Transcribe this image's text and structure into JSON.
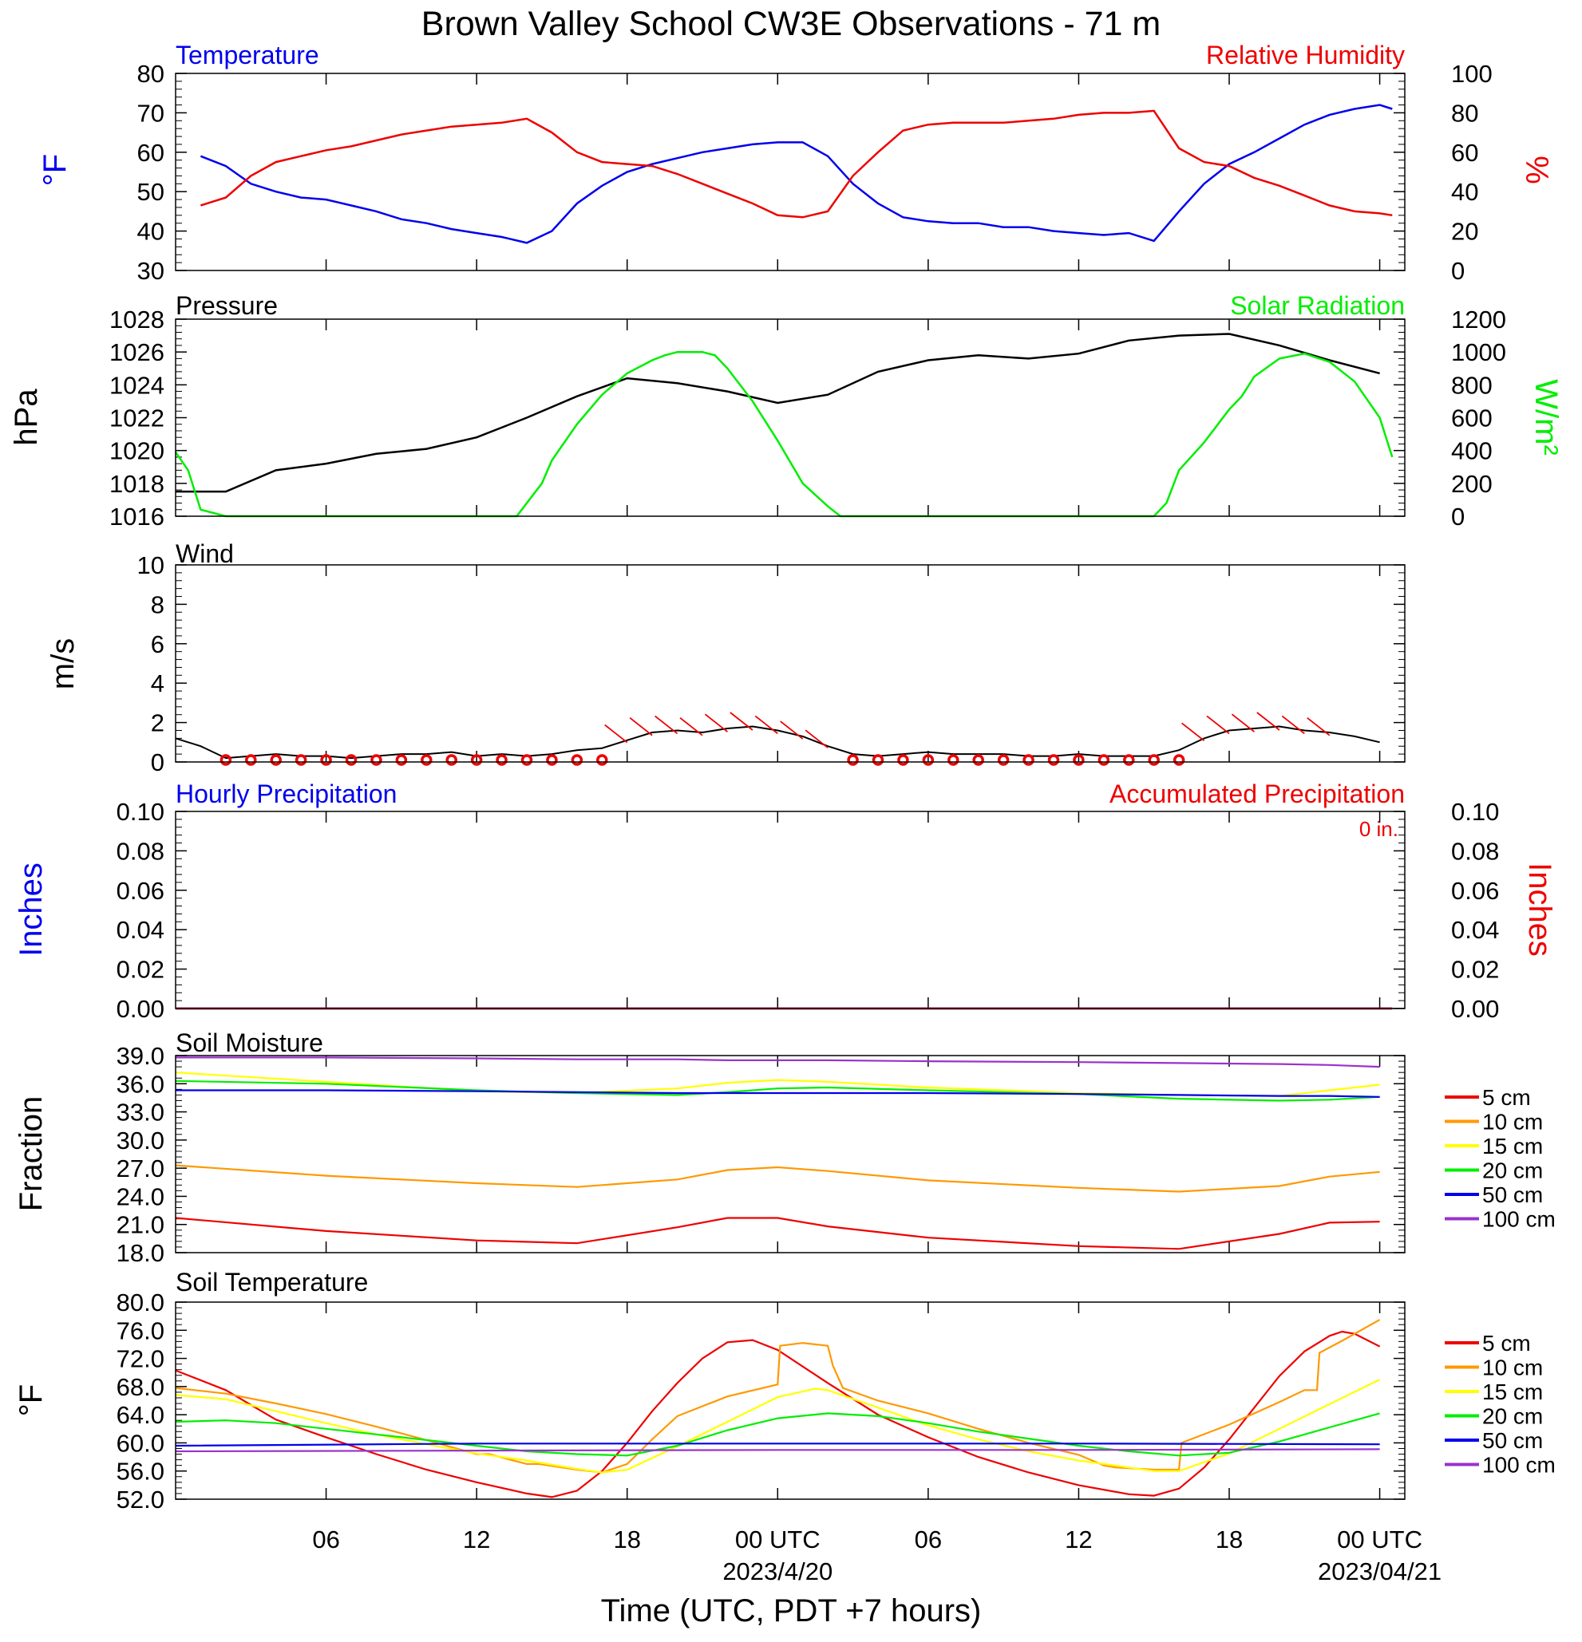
{
  "title": "Brown Valley School CW3E Observations - 71 m",
  "time_axis": {
    "tick_labels": [
      "06",
      "12",
      "18",
      "00 UTC",
      "06",
      "12",
      "18",
      "00 UTC"
    ],
    "dates": [
      "2023/4/20",
      "2023/04/21"
    ],
    "xlabel": "Time (UTC, PDT +7 hours)"
  },
  "panels": {
    "temp_rh": {
      "left_title": "Temperature",
      "right_title": "Relative Humidity",
      "left_ylabel": "°F",
      "right_ylabel": "%",
      "left_ticks": [
        "30",
        "40",
        "50",
        "60",
        "70",
        "80"
      ],
      "right_ticks": [
        "0",
        "20",
        "40",
        "60",
        "80",
        "100"
      ]
    },
    "pressure_solar": {
      "left_title": "Pressure",
      "right_title": "Solar Radiation",
      "left_ylabel": "hPa",
      "right_ylabel": "W/m²",
      "left_ticks": [
        "1016",
        "1018",
        "1020",
        "1022",
        "1024",
        "1026",
        "1028"
      ],
      "right_ticks": [
        "0",
        "200",
        "400",
        "600",
        "800",
        "1000",
        "1200"
      ]
    },
    "wind": {
      "left_title": "Wind",
      "left_ylabel": "m/s",
      "left_ticks": [
        "0",
        "2",
        "4",
        "6",
        "8",
        "10"
      ]
    },
    "precip": {
      "left_title": "Hourly Precipitation",
      "right_title": "Accumulated Precipitation",
      "total_label": "0 in.",
      "left_ylabel": "Inches",
      "right_ylabel": "Inches",
      "left_ticks": [
        "0.00",
        "0.02",
        "0.04",
        "0.06",
        "0.08",
        "0.10"
      ],
      "right_ticks": [
        "0.00",
        "0.02",
        "0.04",
        "0.06",
        "0.08",
        "0.10"
      ]
    },
    "soil_moisture": {
      "left_title": "Soil Moisture",
      "left_ylabel": "Fraction",
      "left_ticks": [
        "18.0",
        "21.0",
        "24.0",
        "27.0",
        "30.0",
        "33.0",
        "36.0",
        "39.0"
      ]
    },
    "soil_temp": {
      "left_title": "Soil Temperature",
      "left_ylabel": "°F",
      "left_ticks": [
        "52.0",
        "56.0",
        "60.0",
        "64.0",
        "68.0",
        "72.0",
        "76.0",
        "80.0"
      ]
    }
  },
  "legend_labels": [
    "5 cm",
    "10 cm",
    "15 cm",
    "20 cm",
    "50 cm",
    "100 cm"
  ],
  "colors": {
    "temperature": "#0000ee",
    "humidity": "#ee0000",
    "pressure": "#000000",
    "solar": "#00ee00",
    "wind": "#000000",
    "wind_barb": "#ee0000",
    "depths": [
      "#ee0000",
      "#ff9900",
      "#ffff00",
      "#00ee00",
      "#0000ee",
      "#9933cc"
    ]
  },
  "chart_data": [
    {
      "type": "line",
      "x_unit": "hours since 2023-04-19 00 UTC",
      "xlim": [
        0,
        49
      ],
      "series": [
        {
          "name": "Temperature",
          "unit": "°F",
          "ylim": [
            30,
            80
          ],
          "x": [
            1,
            2,
            3,
            4,
            5,
            6,
            7,
            8,
            9,
            10,
            11,
            12,
            13,
            14,
            15,
            16,
            17,
            18,
            19,
            20,
            21,
            22,
            23,
            24,
            25,
            26,
            27,
            28,
            29,
            30,
            31,
            32,
            33,
            34,
            35,
            36,
            37,
            38,
            39,
            40,
            41,
            42,
            43,
            44,
            45,
            46,
            47,
            48,
            48.5
          ],
          "y": [
            59,
            56.5,
            52,
            50,
            48.5,
            48,
            46.5,
            45,
            43,
            42,
            40.5,
            39.5,
            38.5,
            37,
            40,
            47,
            51.5,
            55,
            57,
            58.5,
            60,
            61,
            62,
            62.5,
            62.5,
            59,
            52,
            47,
            43.5,
            42.5,
            42,
            42,
            41,
            41,
            40,
            39.5,
            39,
            39.5,
            37.5,
            45,
            52,
            57,
            60,
            63.5,
            67,
            69.5,
            71,
            72,
            71
          ]
        },
        {
          "name": "Relative Humidity",
          "unit": "%",
          "ylim": [
            0,
            100
          ],
          "x": [
            1,
            2,
            3,
            4,
            5,
            6,
            7,
            8,
            9,
            10,
            11,
            12,
            13,
            14,
            15,
            16,
            17,
            18,
            19,
            20,
            21,
            22,
            23,
            24,
            25,
            26,
            27,
            28,
            29,
            30,
            31,
            32,
            33,
            34,
            35,
            36,
            37,
            38,
            39,
            40,
            41,
            42,
            43,
            44,
            45,
            46,
            47,
            48,
            48.5
          ],
          "y": [
            33,
            37,
            48,
            55,
            58,
            61,
            63,
            66,
            69,
            71,
            73,
            74,
            75,
            77,
            70,
            60,
            55,
            54,
            53,
            49,
            44,
            39,
            34,
            28,
            27,
            30,
            48,
            60,
            71,
            74,
            75,
            75,
            75,
            76,
            77,
            79,
            80,
            80,
            81,
            62,
            55,
            53,
            47,
            43,
            38,
            33,
            30,
            29,
            28
          ]
        }
      ]
    },
    {
      "type": "line",
      "x_unit": "hours since 2023-04-19 00 UTC",
      "xlim": [
        0,
        49
      ],
      "series": [
        {
          "name": "Pressure",
          "unit": "hPa",
          "ylim": [
            1016,
            1028
          ],
          "x": [
            0,
            2,
            4,
            6,
            8,
            10,
            12,
            14,
            16,
            18,
            20,
            22,
            24,
            26,
            28,
            30,
            32,
            34,
            36,
            38,
            40,
            42,
            44,
            46,
            48
          ],
          "y": [
            1017.5,
            1017.5,
            1018.8,
            1019.2,
            1019.8,
            1020.1,
            1020.8,
            1022.0,
            1023.3,
            1024.4,
            1024.1,
            1023.6,
            1022.9,
            1023.4,
            1024.8,
            1025.5,
            1025.8,
            1025.6,
            1025.9,
            1026.7,
            1027.0,
            1027.1,
            1026.4,
            1025.5,
            1024.7
          ]
        },
        {
          "name": "Solar Radiation",
          "unit": "W/m²",
          "ylim": [
            0,
            1200
          ],
          "x": [
            0,
            0.5,
            1,
            2,
            12,
            13,
            13.6,
            14,
            14.6,
            15,
            16,
            17,
            18,
            19,
            19.5,
            20,
            21,
            21.5,
            22,
            23,
            24,
            25,
            26,
            26.5,
            38,
            39,
            39.5,
            40,
            41,
            42,
            42.5,
            43,
            44,
            45,
            46,
            47,
            48,
            48.5
          ],
          "y": [
            390,
            280,
            40,
            0,
            0,
            0,
            0,
            80,
            200,
            340,
            560,
            740,
            870,
            950,
            980,
            1000,
            1000,
            980,
            900,
            700,
            460,
            200,
            60,
            0,
            0,
            0,
            80,
            280,
            450,
            650,
            730,
            850,
            960,
            990,
            940,
            820,
            600,
            360
          ]
        }
      ]
    },
    {
      "type": "line",
      "x_unit": "hours since 2023-04-19 00 UTC",
      "xlim": [
        0,
        49
      ],
      "series": [
        {
          "name": "Wind",
          "unit": "m/s",
          "ylim": [
            0,
            10
          ],
          "x": [
            0,
            1,
            2,
            3,
            4,
            5,
            6,
            7,
            8,
            9,
            10,
            11,
            12,
            13,
            14,
            15,
            16,
            17,
            18,
            19,
            20,
            21,
            22,
            23,
            24,
            25,
            26,
            27,
            28,
            29,
            30,
            31,
            32,
            33,
            34,
            35,
            36,
            37,
            38,
            39,
            40,
            41,
            42,
            43,
            44,
            45,
            46,
            47,
            48
          ],
          "y": [
            1.2,
            0.8,
            0.2,
            0.3,
            0.4,
            0.3,
            0.3,
            0.2,
            0.3,
            0.4,
            0.4,
            0.5,
            0.3,
            0.4,
            0.3,
            0.4,
            0.6,
            0.7,
            1.1,
            1.5,
            1.6,
            1.5,
            1.7,
            1.8,
            1.6,
            1.3,
            0.8,
            0.4,
            0.3,
            0.4,
            0.5,
            0.4,
            0.4,
            0.4,
            0.3,
            0.3,
            0.4,
            0.3,
            0.3,
            0.3,
            0.6,
            1.2,
            1.6,
            1.7,
            1.8,
            1.6,
            1.5,
            1.3,
            1.0
          ]
        }
      ]
    },
    {
      "type": "line",
      "x_unit": "hours since 2023-04-19 00 UTC",
      "xlim": [
        0,
        49
      ],
      "series": [
        {
          "name": "Hourly Precipitation",
          "unit": "in",
          "ylim": [
            0,
            0.1
          ],
          "x": [
            0,
            48.5
          ],
          "y": [
            0,
            0
          ]
        },
        {
          "name": "Accumulated Precipitation",
          "unit": "in",
          "ylim": [
            0,
            0.1
          ],
          "x": [
            0,
            48.5
          ],
          "y": [
            0,
            0
          ]
        }
      ]
    },
    {
      "type": "line",
      "x_unit": "hours since 2023-04-19 00 UTC",
      "ylim": [
        18,
        39
      ],
      "x": [
        0,
        6,
        12,
        16,
        20,
        22,
        24,
        26,
        30,
        36,
        40,
        44,
        46,
        48
      ],
      "series": [
        {
          "name": "5 cm",
          "y": [
            21.7,
            20.3,
            19.3,
            19.0,
            20.7,
            21.7,
            21.7,
            20.8,
            19.6,
            18.7,
            18.4,
            20.0,
            21.2,
            21.3
          ]
        },
        {
          "name": "10 cm",
          "y": [
            27.3,
            26.2,
            25.4,
            25.0,
            25.8,
            26.8,
            27.1,
            26.7,
            25.7,
            24.9,
            24.5,
            25.1,
            26.1,
            26.6
          ]
        },
        {
          "name": "15 cm",
          "y": [
            37.2,
            36.2,
            35.2,
            35.0,
            35.5,
            36.1,
            36.4,
            36.2,
            35.6,
            35.0,
            34.8,
            34.7,
            35.3,
            35.9
          ]
        },
        {
          "name": "20 cm",
          "y": [
            36.3,
            36.0,
            35.3,
            35.0,
            34.8,
            35.1,
            35.5,
            35.6,
            35.3,
            34.9,
            34.4,
            34.2,
            34.3,
            34.6
          ]
        },
        {
          "name": "50 cm",
          "y": [
            35.3,
            35.3,
            35.2,
            35.1,
            35.0,
            35.0,
            35.0,
            35.0,
            35.0,
            34.9,
            34.8,
            34.7,
            34.7,
            34.6
          ]
        },
        {
          "name": "100 cm",
          "y": [
            38.8,
            38.8,
            38.7,
            38.6,
            38.6,
            38.5,
            38.5,
            38.5,
            38.4,
            38.3,
            38.2,
            38.1,
            38.0,
            37.8
          ]
        }
      ]
    },
    {
      "type": "line",
      "x_unit": "hours since 2023-04-19 00 UTC",
      "ylim": [
        52,
        80
      ],
      "series": [
        {
          "name": "5 cm",
          "x": [
            0,
            2,
            4,
            6,
            8,
            10,
            12,
            14,
            15,
            16,
            17,
            18,
            19,
            20,
            21,
            22,
            23,
            24,
            26,
            28,
            30,
            32,
            34,
            36,
            38,
            39,
            40,
            41,
            42,
            43,
            44,
            45,
            46,
            46.5,
            47,
            48
          ],
          "y": [
            70.3,
            67.5,
            63.3,
            60.8,
            58.4,
            56.2,
            54.4,
            52.8,
            52.3,
            53.2,
            56.0,
            60.0,
            64.5,
            68.5,
            72.0,
            74.3,
            74.6,
            73.2,
            68.5,
            64.0,
            60.8,
            58.0,
            55.8,
            54.0,
            52.7,
            52.5,
            53.5,
            56.5,
            60.5,
            65.0,
            69.5,
            73.0,
            75.2,
            75.8,
            75.5,
            73.7
          ]
        },
        {
          "name": "10 cm",
          "x": [
            0,
            2,
            4,
            6,
            8,
            10,
            12,
            12.5,
            14,
            14.5,
            16,
            17,
            18,
            19,
            20,
            22,
            24,
            24.1,
            25,
            26,
            26.2,
            26.6,
            28,
            30,
            32,
            34,
            36,
            37,
            37.5,
            38,
            39,
            40,
            40.1,
            42,
            44,
            45,
            45.5,
            45.6,
            46.5,
            48
          ],
          "y": [
            67.8,
            67.0,
            65.6,
            64.1,
            62.3,
            60.4,
            58.4,
            58.4,
            57.0,
            57.0,
            56.2,
            55.8,
            57.0,
            60.5,
            63.8,
            66.6,
            68.3,
            73.8,
            74.2,
            73.8,
            71.0,
            67.8,
            66.0,
            64.2,
            62.0,
            60.0,
            58.3,
            56.8,
            56.5,
            56.4,
            56.2,
            56.2,
            60.0,
            62.6,
            65.8,
            67.5,
            67.5,
            72.8,
            74.5,
            77.5
          ]
        },
        {
          "name": "15 cm",
          "x": [
            0,
            2,
            4,
            6,
            8,
            10,
            12,
            14,
            16,
            17,
            18,
            20,
            22,
            24,
            25.5,
            26,
            28,
            30,
            32,
            34,
            36,
            38,
            39,
            40,
            42,
            44,
            46,
            48
          ],
          "y": [
            66.8,
            66.2,
            64.5,
            62.8,
            61.2,
            59.8,
            58.5,
            57.5,
            56.3,
            55.8,
            56.2,
            59.5,
            63.0,
            66.5,
            67.7,
            67.5,
            65.0,
            62.5,
            60.5,
            58.8,
            57.5,
            56.5,
            56.0,
            56.0,
            58.5,
            62.0,
            65.5,
            69.0
          ]
        },
        {
          "name": "20 cm",
          "x": [
            0,
            2,
            4,
            6,
            8,
            10,
            12,
            14,
            16,
            18,
            20,
            22,
            24,
            26,
            28,
            30,
            32,
            34,
            36,
            38,
            40,
            42,
            44,
            46,
            48
          ],
          "y": [
            63.0,
            63.2,
            62.8,
            62.0,
            61.2,
            60.4,
            59.6,
            58.8,
            58.4,
            58.2,
            59.6,
            61.8,
            63.5,
            64.2,
            63.8,
            62.8,
            61.6,
            60.6,
            59.6,
            58.8,
            58.2,
            58.6,
            60.2,
            62.2,
            64.2
          ]
        },
        {
          "name": "50 cm",
          "x": [
            0,
            12,
            24,
            36,
            48
          ],
          "y": [
            59.6,
            59.9,
            59.9,
            59.9,
            59.8
          ]
        },
        {
          "name": "100 cm",
          "x": [
            0,
            12,
            24,
            36,
            48
          ],
          "y": [
            58.8,
            58.9,
            59.0,
            59.0,
            59.1
          ]
        }
      ]
    }
  ]
}
